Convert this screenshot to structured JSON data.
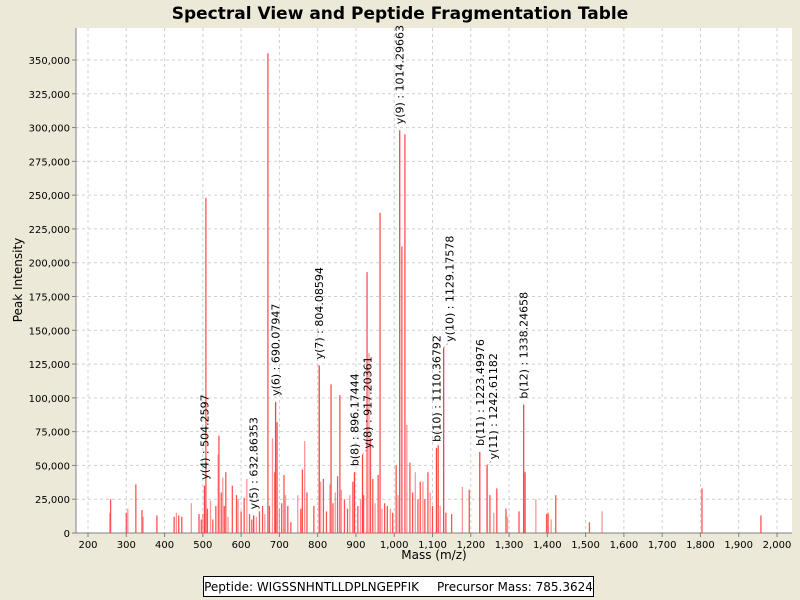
{
  "chart_data": {
    "type": "bar",
    "title": "Spectral View and Peptide Fragmentation Table",
    "xlabel": "Mass (m/z)",
    "ylabel": "Peak Intensity",
    "xlim": [
      170,
      2040
    ],
    "ylim": [
      0,
      372000
    ],
    "x_ticks": [
      200,
      300,
      400,
      500,
      600,
      700,
      800,
      900,
      1000,
      1100,
      1200,
      1300,
      1400,
      1500,
      1600,
      1700,
      1800,
      1900,
      2000
    ],
    "x_tick_labels": [
      "200",
      "300",
      "400",
      "500",
      "600",
      "700",
      "800",
      "900",
      "1,000",
      "1,100",
      "1,200",
      "1,300",
      "1,400",
      "1,500",
      "1,600",
      "1,700",
      "1,800",
      "1,900",
      "2,000"
    ],
    "y_ticks": [
      0,
      25000,
      50000,
      75000,
      100000,
      125000,
      150000,
      175000,
      200000,
      225000,
      250000,
      275000,
      300000,
      325000,
      350000
    ],
    "y_tick_labels": [
      "0",
      "25,000",
      "50,000",
      "75,000",
      "100,000",
      "125,000",
      "150,000",
      "175,000",
      "200,000",
      "225,000",
      "250,000",
      "275,000",
      "300,000",
      "325,000",
      "350,000"
    ],
    "grid": true,
    "peak_color": "#FF4040",
    "peaks": [
      [
        257,
        15000
      ],
      [
        259,
        25000
      ],
      [
        300,
        15000
      ],
      [
        304,
        18000
      ],
      [
        325,
        36000
      ],
      [
        341,
        17000
      ],
      [
        344,
        12000
      ],
      [
        380,
        13000
      ],
      [
        425,
        12000
      ],
      [
        431,
        15000
      ],
      [
        437,
        13000
      ],
      [
        445,
        12000
      ],
      [
        470,
        22000
      ],
      [
        490,
        14000
      ],
      [
        496,
        10000
      ],
      [
        500,
        14000
      ],
      [
        508,
        248000
      ],
      [
        512,
        18000
      ],
      [
        520,
        24000
      ],
      [
        526,
        10000
      ],
      [
        534,
        20000
      ],
      [
        540,
        58000
      ],
      [
        542,
        72000
      ],
      [
        548,
        30000
      ],
      [
        552,
        41000
      ],
      [
        556,
        20000
      ],
      [
        560,
        45000
      ],
      [
        566,
        12000
      ],
      [
        577,
        35000
      ],
      [
        588,
        28000
      ],
      [
        592,
        25000
      ],
      [
        600,
        16000
      ],
      [
        608,
        26000
      ],
      [
        615,
        40000
      ],
      [
        622,
        14000
      ],
      [
        628,
        10000
      ],
      [
        640,
        12000
      ],
      [
        648,
        16000
      ],
      [
        656,
        20000
      ],
      [
        662,
        14000
      ],
      [
        670,
        355000
      ],
      [
        674,
        20000
      ],
      [
        682,
        70000
      ],
      [
        688,
        45000
      ],
      [
        694,
        82000
      ],
      [
        700,
        18000
      ],
      [
        706,
        22000
      ],
      [
        712,
        43000
      ],
      [
        716,
        28000
      ],
      [
        722,
        20000
      ],
      [
        730,
        8000
      ],
      [
        748,
        28000
      ],
      [
        756,
        18000
      ],
      [
        760,
        47000
      ],
      [
        766,
        68000
      ],
      [
        772,
        30000
      ],
      [
        790,
        20000
      ],
      [
        808,
        38000
      ],
      [
        815,
        40000
      ],
      [
        823,
        16000
      ],
      [
        832,
        36000
      ],
      [
        835,
        110000
      ],
      [
        840,
        22000
      ],
      [
        846,
        30000
      ],
      [
        852,
        42000
      ],
      [
        858,
        102000
      ],
      [
        862,
        32000
      ],
      [
        870,
        25000
      ],
      [
        878,
        18000
      ],
      [
        884,
        28000
      ],
      [
        892,
        38000
      ],
      [
        905,
        20000
      ],
      [
        912,
        25000
      ],
      [
        920,
        28000
      ],
      [
        929,
        193000
      ],
      [
        934,
        133000
      ],
      [
        938,
        70000
      ],
      [
        944,
        40000
      ],
      [
        950,
        22000
      ],
      [
        958,
        43000
      ],
      [
        963,
        237000
      ],
      [
        968,
        18000
      ],
      [
        975,
        22000
      ],
      [
        982,
        20000
      ],
      [
        990,
        18000
      ],
      [
        996,
        15000
      ],
      [
        1005,
        50000
      ],
      [
        1010,
        28000
      ],
      [
        1020,
        212000
      ],
      [
        1028,
        295000
      ],
      [
        1033,
        80000
      ],
      [
        1041,
        52000
      ],
      [
        1048,
        30000
      ],
      [
        1055,
        45000
      ],
      [
        1062,
        25000
      ],
      [
        1068,
        38000
      ],
      [
        1075,
        38000
      ],
      [
        1080,
        25000
      ],
      [
        1088,
        45000
      ],
      [
        1094,
        30000
      ],
      [
        1100,
        20000
      ],
      [
        1115,
        65000
      ],
      [
        1120,
        20000
      ],
      [
        1135,
        15000
      ],
      [
        1150,
        14000
      ],
      [
        1178,
        34000
      ],
      [
        1196,
        32000
      ],
      [
        1250,
        28000
      ],
      [
        1260,
        15000
      ],
      [
        1268,
        33000
      ],
      [
        1292,
        18000
      ],
      [
        1296,
        12000
      ],
      [
        1326,
        16000
      ],
      [
        1342,
        45000
      ],
      [
        1370,
        25000
      ],
      [
        1398,
        14000
      ],
      [
        1402,
        15000
      ],
      [
        1410,
        10000
      ],
      [
        1422,
        28000
      ],
      [
        1510,
        8000
      ],
      [
        1543,
        16000
      ],
      [
        1804,
        33000
      ],
      [
        1958,
        13000
      ]
    ],
    "annotations": [
      {
        "label": "y(4) : 504.2597",
        "mz": 504.2597,
        "intensity": 35000
      },
      {
        "label": "y(5) : 632.86353",
        "mz": 632.86353,
        "intensity": 13000
      },
      {
        "label": "y(6) : 690.07947",
        "mz": 690.07947,
        "intensity": 97000
      },
      {
        "label": "y(7) : 804.08594",
        "mz": 804.08594,
        "intensity": 124000
      },
      {
        "label": "b(8) : 896.17444",
        "mz": 896.17444,
        "intensity": 45000
      },
      {
        "label": "y(8) : 917.20361",
        "mz": 917.20361,
        "intensity": 58000
      },
      {
        "label": "y(9) : 1014.29663",
        "mz": 1014.29663,
        "intensity": 298000
      },
      {
        "label": "b(10) : 1110.36792",
        "mz": 1110.36792,
        "intensity": 63000
      },
      {
        "label": "y(10) : 1129.17578",
        "mz": 1129.17578,
        "intensity": 137000
      },
      {
        "label": "b(11) : 1223.49976",
        "mz": 1223.49976,
        "intensity": 60000
      },
      {
        "label": "y(11) : 1242.61182",
        "mz": 1242.61182,
        "intensity": 50000
      },
      {
        "label": "b(12) : 1338.24658",
        "mz": 1338.24658,
        "intensity": 95000
      }
    ]
  },
  "legend": {
    "peptide": "Peptide: WIGSSNHNTLLDPLNGEPFIK",
    "precursor": "Precursor Mass: 785.3624"
  }
}
